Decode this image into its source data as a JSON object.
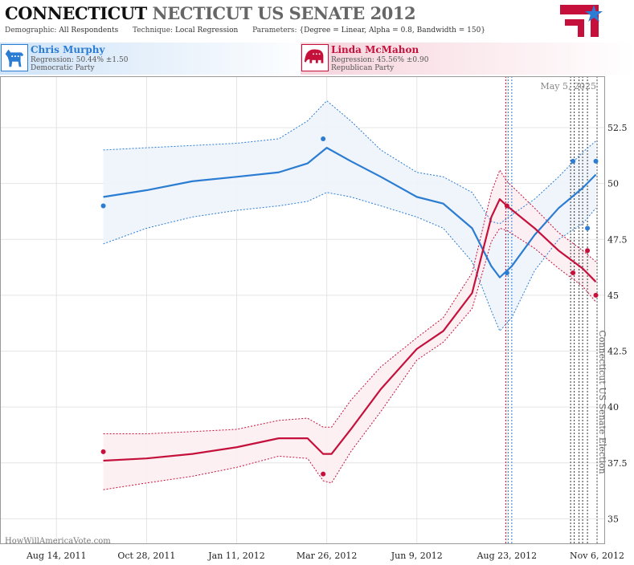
{
  "header": {
    "title_main": "CONNECTICUT",
    "title_rest": "NECTICUT US SENATE 2012",
    "demographic_label": "Demographic:",
    "demographic_value": "All Respondents",
    "technique_label": "Technique:",
    "technique_value": "Local Regression",
    "parameters_label": "Parameters:",
    "parameters_value": "{Degree = Linear, Alpha = 0.8, Bandwidth = 150}"
  },
  "candidates": [
    {
      "name": "Chris Murphy",
      "regression": "Regression: 50.44% ±1.50",
      "party": "Democratic Party",
      "color": "#2b7cd3",
      "icon": "donkey-icon"
    },
    {
      "name": "Linda McMahon",
      "regression": "Regression: 45.56% ±0.90",
      "party": "Republican Party",
      "color": "#c4103a",
      "icon": "elephant-icon"
    }
  ],
  "watermark": "HowWillAmericaVote.com",
  "date_stamp": "May 5, 2025",
  "chart_data": {
    "type": "line",
    "x_tick_labels": [
      "Aug 14, 2011",
      "Oct 28, 2011",
      "Jan 11, 2012",
      "Mar 26, 2012",
      "Jun 9, 2012",
      "Aug 23, 2012",
      "Nov 6, 2012"
    ],
    "x_ticks": [
      "2011-08-14",
      "2011-10-28",
      "2012-01-11",
      "2012-03-26",
      "2012-06-09",
      "2012-08-23",
      "2012-11-06"
    ],
    "xlim": [
      "2011-06-28",
      "2012-11-12"
    ],
    "y_tick_labels": [
      "35",
      "37.5",
      "40",
      "42.5",
      "45",
      "47.5",
      "50",
      "52.5"
    ],
    "y_ticks": [
      35,
      37.5,
      40,
      42.5,
      45,
      47.5,
      50,
      52.5
    ],
    "ylim": [
      33.9,
      54.8
    ],
    "y_axis_side": "right",
    "grid": true,
    "event_label": "Connecticut US Senate Election",
    "event_date": "2012-11-06",
    "poll_lines": [
      {
        "date": "2012-08-22",
        "color": "#c4103a"
      },
      {
        "date": "2012-08-24",
        "color": "#2b7cd3"
      },
      {
        "date": "2012-08-27",
        "color": "#2b7cd3"
      },
      {
        "date": "2012-10-15",
        "color": "#333333"
      },
      {
        "date": "2012-10-18",
        "color": "#333333"
      },
      {
        "date": "2012-10-22",
        "color": "#333333"
      },
      {
        "date": "2012-10-25",
        "color": "#333333"
      },
      {
        "date": "2012-10-29",
        "color": "#333333"
      }
    ],
    "series": [
      {
        "name": "Chris Murphy",
        "color": "#2b7cd3",
        "fill": "#eef4fb",
        "points": [
          {
            "x": "2011-09-22",
            "y": 49.0
          },
          {
            "x": "2012-03-23",
            "y": 52.0
          },
          {
            "x": "2012-08-23",
            "y": 46.0
          },
          {
            "x": "2012-10-17",
            "y": 51.0
          },
          {
            "x": "2012-10-29",
            "y": 48.0
          },
          {
            "x": "2012-11-05",
            "y": 51.0
          }
        ],
        "fit": [
          {
            "x": "2011-09-22",
            "y": 49.4,
            "lo": 47.3,
            "hi": 51.5
          },
          {
            "x": "2011-10-28",
            "y": 49.7,
            "lo": 48.0,
            "hi": 51.6
          },
          {
            "x": "2011-12-05",
            "y": 50.1,
            "lo": 48.5,
            "hi": 51.7
          },
          {
            "x": "2012-01-11",
            "y": 50.3,
            "lo": 48.8,
            "hi": 51.8
          },
          {
            "x": "2012-02-15",
            "y": 50.5,
            "lo": 49.0,
            "hi": 52.0
          },
          {
            "x": "2012-03-10",
            "y": 50.9,
            "lo": 49.2,
            "hi": 52.8
          },
          {
            "x": "2012-03-26",
            "y": 51.6,
            "lo": 49.6,
            "hi": 53.7
          },
          {
            "x": "2012-04-15",
            "y": 51.0,
            "lo": 49.4,
            "hi": 52.8
          },
          {
            "x": "2012-05-10",
            "y": 50.3,
            "lo": 49.0,
            "hi": 51.5
          },
          {
            "x": "2012-06-09",
            "y": 49.4,
            "lo": 48.5,
            "hi": 50.5
          },
          {
            "x": "2012-07-01",
            "y": 49.1,
            "lo": 48.0,
            "hi": 50.3
          },
          {
            "x": "2012-07-25",
            "y": 48.0,
            "lo": 46.5,
            "hi": 49.6
          },
          {
            "x": "2012-08-10",
            "y": 46.3,
            "lo": 44.3,
            "hi": 48.3
          },
          {
            "x": "2012-08-17",
            "y": 45.8,
            "lo": 43.4,
            "hi": 48.2
          },
          {
            "x": "2012-08-27",
            "y": 46.3,
            "lo": 44.0,
            "hi": 48.6
          },
          {
            "x": "2012-09-15",
            "y": 47.7,
            "lo": 46.1,
            "hi": 49.3
          },
          {
            "x": "2012-10-05",
            "y": 48.9,
            "lo": 47.5,
            "hi": 50.3
          },
          {
            "x": "2012-10-25",
            "y": 49.8,
            "lo": 48.2,
            "hi": 51.4
          },
          {
            "x": "2012-11-05",
            "y": 50.4,
            "lo": 48.9,
            "hi": 51.9
          }
        ]
      },
      {
        "name": "Linda McMahon",
        "color": "#c4103a",
        "fill": "#fdeef2",
        "points": [
          {
            "x": "2011-09-22",
            "y": 38.0
          },
          {
            "x": "2012-03-23",
            "y": 37.0
          },
          {
            "x": "2012-08-23",
            "y": 49.0
          },
          {
            "x": "2012-10-17",
            "y": 46.0
          },
          {
            "x": "2012-10-29",
            "y": 47.0
          },
          {
            "x": "2012-11-05",
            "y": 45.0
          }
        ],
        "fit": [
          {
            "x": "2011-09-22",
            "y": 37.6,
            "lo": 36.3,
            "hi": 38.8
          },
          {
            "x": "2011-10-28",
            "y": 37.7,
            "lo": 36.6,
            "hi": 38.8
          },
          {
            "x": "2011-12-05",
            "y": 37.9,
            "lo": 36.9,
            "hi": 38.9
          },
          {
            "x": "2012-01-11",
            "y": 38.2,
            "lo": 37.3,
            "hi": 39.0
          },
          {
            "x": "2012-02-15",
            "y": 38.6,
            "lo": 37.8,
            "hi": 39.4
          },
          {
            "x": "2012-03-10",
            "y": 38.6,
            "lo": 37.7,
            "hi": 39.5
          },
          {
            "x": "2012-03-23",
            "y": 37.9,
            "lo": 36.7,
            "hi": 39.1
          },
          {
            "x": "2012-03-30",
            "y": 37.9,
            "lo": 36.6,
            "hi": 39.1
          },
          {
            "x": "2012-04-15",
            "y": 39.0,
            "lo": 38.0,
            "hi": 40.3
          },
          {
            "x": "2012-05-10",
            "y": 40.8,
            "lo": 39.8,
            "hi": 41.8
          },
          {
            "x": "2012-06-09",
            "y": 42.6,
            "lo": 42.1,
            "hi": 43.1
          },
          {
            "x": "2012-07-01",
            "y": 43.4,
            "lo": 42.9,
            "hi": 44.0
          },
          {
            "x": "2012-07-25",
            "y": 45.1,
            "lo": 44.4,
            "hi": 46.0
          },
          {
            "x": "2012-08-10",
            "y": 48.5,
            "lo": 47.4,
            "hi": 49.6
          },
          {
            "x": "2012-08-17",
            "y": 49.3,
            "lo": 48.0,
            "hi": 50.6
          },
          {
            "x": "2012-08-23",
            "y": 49.0,
            "lo": 47.9,
            "hi": 50.1
          },
          {
            "x": "2012-09-15",
            "y": 48.0,
            "lo": 47.1,
            "hi": 48.9
          },
          {
            "x": "2012-10-05",
            "y": 47.0,
            "lo": 46.2,
            "hi": 47.8
          },
          {
            "x": "2012-10-25",
            "y": 46.2,
            "lo": 45.4,
            "hi": 47.0
          },
          {
            "x": "2012-11-05",
            "y": 45.6,
            "lo": 44.7,
            "hi": 46.5
          }
        ]
      }
    ]
  }
}
